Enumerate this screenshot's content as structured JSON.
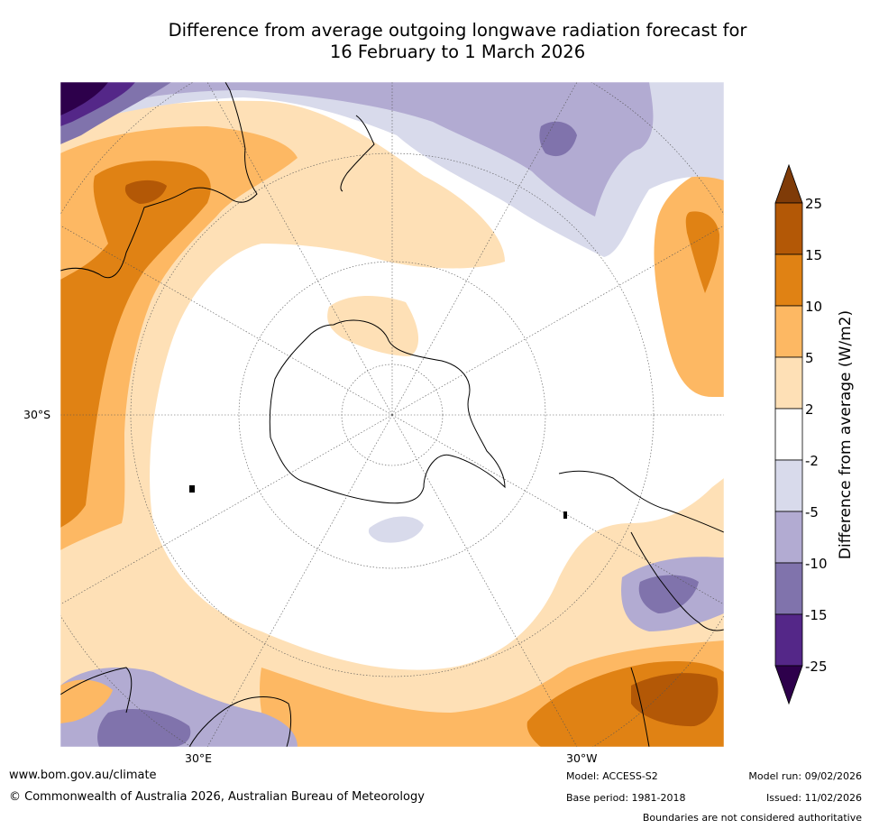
{
  "title": {
    "line1": "Difference from average outgoing longwave radiation forecast for",
    "line2": "16 February to 1 March 2026"
  },
  "map": {
    "projection": "south-polar-stereographic",
    "lat_labels": [
      "30°S"
    ],
    "lon_labels": [
      "30°E",
      "30°W"
    ],
    "coastline_color": "#000000",
    "boundary_color": "#888888"
  },
  "legend": {
    "label": "Difference from average (W/m2)",
    "ticks": [
      "25",
      "15",
      "10",
      "5",
      "2",
      "-2",
      "-5",
      "-10",
      "-15",
      "-25"
    ],
    "colors": {
      "above_25": "#7f3b08",
      "15_25": "#b35806",
      "10_15": "#e08214",
      "5_10": "#fdb863",
      "2_5": "#fee0b6",
      "neutral": "#ffffff",
      "m5_m2": "#d8daeb",
      "m10_m5": "#b2abd2",
      "m15_m10": "#8073ac",
      "m25_m15": "#542788",
      "below_m25": "#2d004b"
    }
  },
  "footer": {
    "website": "www.bom.gov.au/climate",
    "copyright": "© Commonwealth of Australia 2026, Australian Bureau of Meteorology",
    "model": "Model: ACCESS-S2",
    "base_period": "Base period: 1981-2018",
    "model_run": "Model run: 09/02/2026",
    "issued": "Issued: 11/02/2026",
    "disclaimer": "Boundaries are not considered authoritative"
  }
}
